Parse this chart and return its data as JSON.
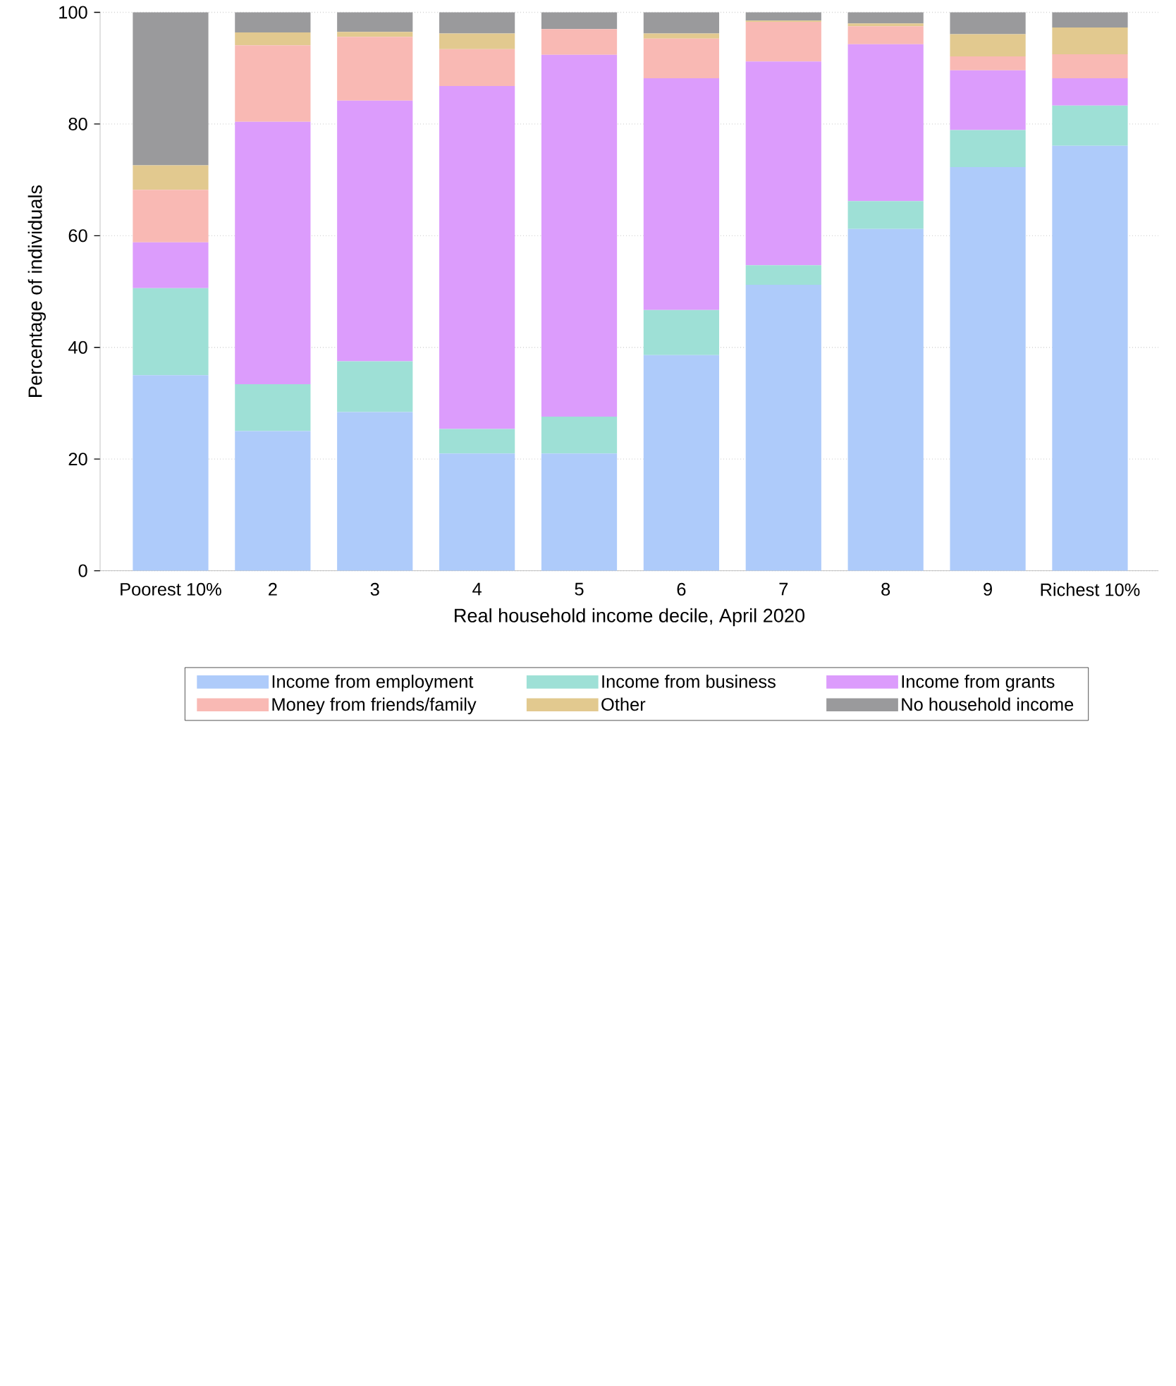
{
  "chart_data": {
    "type": "bar",
    "stacked": true,
    "xlabel": "Real household income decile, April 2020",
    "ylabel": "Percentage of individuals",
    "categories": [
      "Poorest 10%",
      "2",
      "3",
      "4",
      "5",
      "6",
      "7",
      "8",
      "9",
      "Richest 10%"
    ],
    "series": [
      {
        "name": "Income from employment",
        "color": "#aecbfa",
        "values": [
          35,
          25,
          28.4,
          21,
          21,
          38.6,
          51.2,
          61.2,
          72.3,
          76.1
        ]
      },
      {
        "name": "Income from business",
        "color": "#9ee0d6",
        "values": [
          15.6,
          8.4,
          9.1,
          4.4,
          6.6,
          8.1,
          3.5,
          5.0,
          6.6,
          7.2
        ]
      },
      {
        "name": "Income from grants",
        "color": "#dc9cfc",
        "values": [
          8.2,
          47.0,
          46.7,
          61.4,
          64.8,
          41.5,
          36.5,
          28.1,
          10.7,
          4.9
        ]
      },
      {
        "name": "Money from friends/family",
        "color": "#f9b9b4",
        "values": [
          9.4,
          13.7,
          11.4,
          6.6,
          4.6,
          7.1,
          7.1,
          3.2,
          2.5,
          4.3
        ]
      },
      {
        "name": "Other",
        "color": "#e2c98f",
        "values": [
          4.4,
          2.3,
          0.9,
          2.8,
          0,
          0.9,
          0.2,
          0.5,
          4.0,
          4.8
        ]
      },
      {
        "name": "No household income",
        "color": "#9a9a9c",
        "values": [
          27.4,
          3.6,
          3.5,
          3.8,
          3.0,
          3.8,
          1.5,
          2.0,
          3.9,
          2.7
        ]
      }
    ],
    "ylim": [
      0,
      100
    ],
    "yticks": [
      0,
      20,
      40,
      60,
      80,
      100
    ],
    "grid": "y",
    "legend": "bottom"
  }
}
